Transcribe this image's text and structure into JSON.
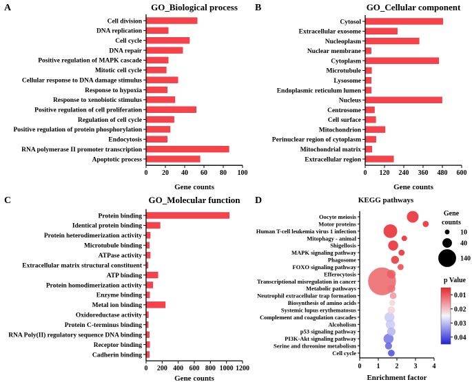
{
  "panels": {
    "a": {
      "label": "A"
    },
    "b": {
      "label": "B"
    },
    "c": {
      "label": "C"
    },
    "d": {
      "label": "D"
    }
  },
  "colors": {
    "bar": "#f5424b",
    "bar_stroke": "#d9282f",
    "grad_high": "#e8262b",
    "grad_mid": "#f4f4fa",
    "grad_low": "#1f22d6"
  },
  "chart_data": [
    {
      "id": "bp",
      "type": "bar",
      "orientation": "horizontal",
      "title": "GO_Biological process",
      "xlabel": "Gene counts",
      "xlim": [
        0,
        100
      ],
      "xticks": [
        "0",
        "20",
        "40",
        "60",
        "80",
        "100"
      ],
      "categories": [
        "Cell division",
        "DNA replication",
        "Cell cycle",
        "DNA repair",
        "Positive regulation of MAPK cascade",
        "Mitotic cell cycle",
        "Cellular response to DNA damage stimulus",
        "Response to hypoxia",
        "Response to xenobiotic stimulus",
        "Positive regulation of cell proliferation",
        "Regulation of cell cycle",
        "Positive regulation of protein phosphorylation",
        "Endocytosis",
        "RNA polymerase II promoter transcription",
        "Apoptotic process"
      ],
      "values": [
        53,
        23,
        45,
        38,
        23,
        21,
        33,
        22,
        30,
        52,
        29,
        25,
        22,
        86,
        56
      ]
    },
    {
      "id": "cc",
      "type": "bar",
      "orientation": "horizontal",
      "title": "GO_Cellular component",
      "xlabel": "Gene counts",
      "xlim": [
        0,
        600
      ],
      "xticks": [
        "0",
        "120",
        "240",
        "360",
        "480",
        "600"
      ],
      "categories": [
        "Cytosol",
        "Extracellular exosome",
        "Nucleoplasm",
        "Nuclear membrane",
        "Cytoplasm",
        "Microtubule",
        "Lysosome",
        "Endoplasmic reticulum lumen",
        "Nucleus",
        "Centrosome",
        "Cell surface",
        "Mitochondrion",
        "Perinuclear region of cytoplasm",
        "Mitochondrial matrix",
        "Extracellular region"
      ],
      "values": [
        483,
        200,
        336,
        37,
        458,
        40,
        38,
        38,
        478,
        58,
        66,
        124,
        67,
        42,
        177
      ]
    },
    {
      "id": "mf",
      "type": "bar",
      "orientation": "horizontal",
      "title": "GO_Molecular function",
      "xlabel": "Gene counts",
      "xlim": [
        0,
        1200
      ],
      "xticks": [
        "0",
        "200",
        "400",
        "600",
        "800",
        "1000",
        "1200"
      ],
      "categories": [
        "Protein binding",
        "Identical protein binding",
        "Protein heterodimerization activity",
        "Microtubule binding",
        "ATPase activity",
        "Extracellular matrix structural constituent",
        "ATP binding",
        "Protein homodimerization activity",
        "Enzyme binding",
        "Metal ion binding",
        "Oxidoreductase activity",
        "Protein C-terminus binding",
        "RNA Poly(II) regulatory  sequence DNA binding",
        "Receptor binding",
        "Cadherin binding"
      ],
      "values": [
        1035,
        175,
        52,
        42,
        52,
        25,
        148,
        85,
        45,
        240,
        30,
        28,
        40,
        45,
        42
      ]
    },
    {
      "id": "kegg",
      "type": "scatter",
      "title": "KEGG pathways",
      "xlabel": "Enrichment factor",
      "xlim": [
        0,
        4
      ],
      "xticks": [
        "0",
        "1",
        "2",
        "3",
        "4"
      ],
      "categories": [
        "Oocyte meiosis",
        "Motor proteins",
        "Human T-cell leukemia virus 1 infection",
        "Mitophagy - animal",
        "Shigellosis",
        "MAPK signaling pathway",
        "Phagosome",
        "FOXO signaling pathway",
        "Efferocytosis",
        "Transcriptional misregulation in cancer",
        "Metabolic pathways",
        "Neutrophil extracellular trap formation",
        "Biosynthesis of amino acids",
        "Systemic lupus erythematosus",
        "Complement and coagulation cascades",
        "Alcoholism",
        "p53 signaling pathway",
        "PI3K-Akt signaling pathway",
        "Serine and threonine metabolism",
        "Cell cycle"
      ],
      "enrichment": [
        2.85,
        3.55,
        1.65,
        2.4,
        1.8,
        2.25,
        1.9,
        2.2,
        1.7,
        1.2,
        1.7,
        1.8,
        1.75,
        1.7,
        1.6,
        1.65,
        1.7,
        1.55,
        1.55,
        1.7
      ],
      "counts": [
        55,
        15,
        75,
        12,
        40,
        15,
        25,
        15,
        30,
        310,
        25,
        18,
        15,
        22,
        40,
        35,
        28,
        40,
        20,
        18
      ],
      "pvalue": [
        0.002,
        0.002,
        0.003,
        0.004,
        0.004,
        0.005,
        0.006,
        0.008,
        0.01,
        0.011,
        0.012,
        0.016,
        0.022,
        0.022,
        0.029,
        0.029,
        0.031,
        0.037,
        0.039,
        0.041
      ],
      "size_legend": {
        "title_line1": "Gene",
        "title_line2": "counts",
        "values": [
          10,
          40,
          140
        ],
        "labels": [
          "10",
          "40",
          "140"
        ]
      },
      "color_legend": {
        "title": "p Value",
        "range": [
          0.005,
          0.045
        ],
        "ticks": [
          "0.01",
          "0.02",
          "0.03",
          "0.04"
        ],
        "tick_values": [
          0.01,
          0.02,
          0.03,
          0.04
        ]
      }
    }
  ]
}
